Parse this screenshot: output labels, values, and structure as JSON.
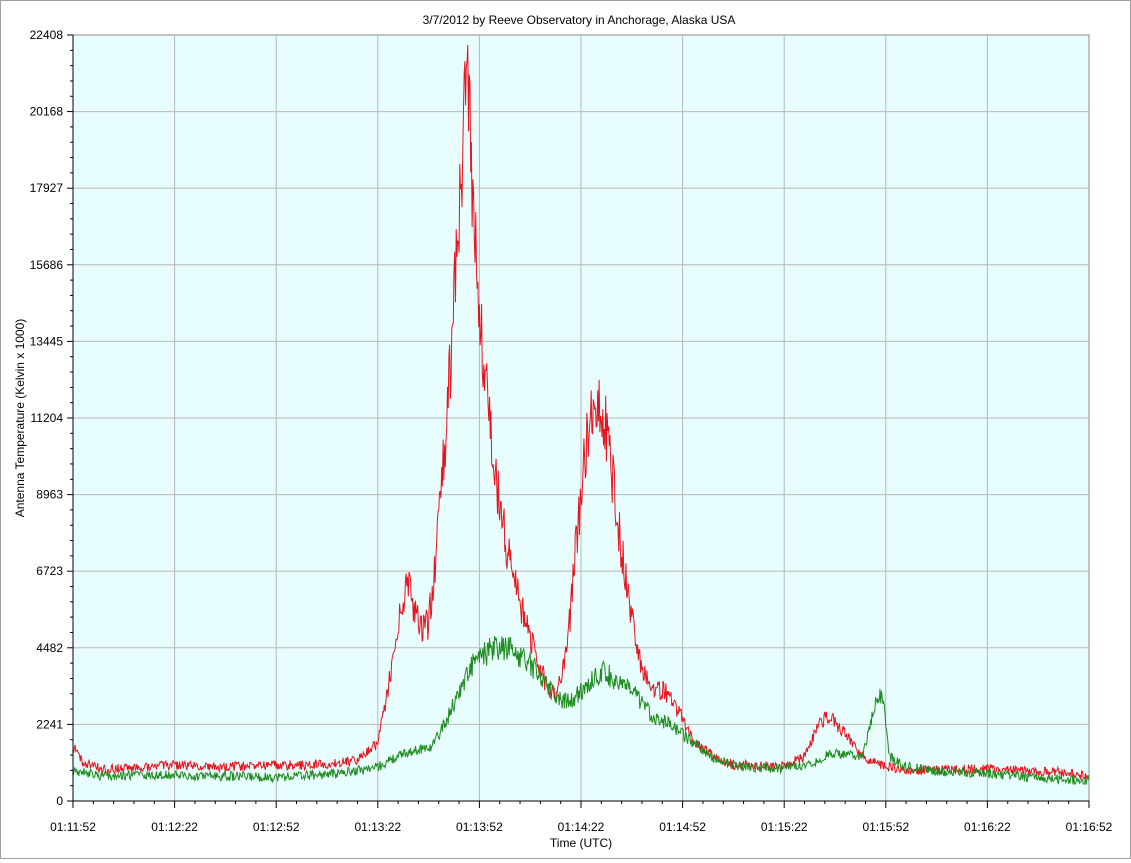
{
  "chart_data": {
    "type": "line",
    "title": "3/7/2012  by  Reeve Observatory  in  Anchorage, Alaska  USA",
    "xlabel": "Time (UTC)",
    "ylabel": "Antenna Temperature (Kelvin x 1000)",
    "ylim": [
      0,
      22408
    ],
    "yticks": [
      0,
      2241,
      4482,
      6723,
      8963,
      11204,
      13445,
      15686,
      17927,
      20168,
      22408
    ],
    "xlim": [
      "01:11:52",
      "01:16:52"
    ],
    "xticks": [
      "01:11:52",
      "01:12:22",
      "01:12:52",
      "01:13:22",
      "01:13:52",
      "01:14:22",
      "01:14:52",
      "01:15:22",
      "01:15:52",
      "01:16:22",
      "01:16:52"
    ],
    "grid": true,
    "background_color": "#e8fdfd",
    "series": [
      {
        "color": "#e8131f",
        "points": [
          [
            "01:11:52",
            1600
          ],
          [
            "01:11:55",
            1150
          ],
          [
            "01:12:00",
            950
          ],
          [
            "01:12:10",
            950
          ],
          [
            "01:12:22",
            1050
          ],
          [
            "01:12:35",
            1000
          ],
          [
            "01:12:52",
            1050
          ],
          [
            "01:13:00",
            1050
          ],
          [
            "01:13:10",
            1100
          ],
          [
            "01:13:16",
            1200
          ],
          [
            "01:13:22",
            1700
          ],
          [
            "01:13:26",
            3800
          ],
          [
            "01:13:29",
            5800
          ],
          [
            "01:13:31",
            6300
          ],
          [
            "01:13:33",
            5500
          ],
          [
            "01:13:35",
            5000
          ],
          [
            "01:13:37",
            5200
          ],
          [
            "01:13:40",
            8000
          ],
          [
            "01:13:43",
            12000
          ],
          [
            "01:13:46",
            17000
          ],
          [
            "01:13:48",
            20500
          ],
          [
            "01:13:49",
            20300
          ],
          [
            "01:13:50",
            17500
          ],
          [
            "01:13:51",
            15800
          ],
          [
            "01:13:53",
            13000
          ],
          [
            "01:13:56",
            10000
          ],
          [
            "01:13:59",
            8000
          ],
          [
            "01:14:02",
            6500
          ],
          [
            "01:14:05",
            5500
          ],
          [
            "01:14:08",
            4500
          ],
          [
            "01:14:12",
            3300
          ],
          [
            "01:14:15",
            3100
          ],
          [
            "01:14:18",
            4500
          ],
          [
            "01:14:21",
            8000
          ],
          [
            "01:14:24",
            10800
          ],
          [
            "01:14:28",
            11800
          ],
          [
            "01:14:30",
            10500
          ],
          [
            "01:14:33",
            8000
          ],
          [
            "01:14:36",
            6000
          ],
          [
            "01:14:39",
            4200
          ],
          [
            "01:14:42",
            3400
          ],
          [
            "01:14:47",
            3200
          ],
          [
            "01:14:51",
            2600
          ],
          [
            "01:14:55",
            1800
          ],
          [
            "01:15:00",
            1400
          ],
          [
            "01:15:07",
            1050
          ],
          [
            "01:15:15",
            1050
          ],
          [
            "01:15:22",
            1050
          ],
          [
            "01:15:28",
            1300
          ],
          [
            "01:15:32",
            2200
          ],
          [
            "01:15:35",
            2500
          ],
          [
            "01:15:38",
            2200
          ],
          [
            "01:15:42",
            1700
          ],
          [
            "01:15:46",
            1200
          ],
          [
            "01:15:52",
            1000
          ],
          [
            "01:16:00",
            900
          ],
          [
            "01:16:10",
            900
          ],
          [
            "01:16:22",
            950
          ],
          [
            "01:16:35",
            850
          ],
          [
            "01:16:45",
            850
          ],
          [
            "01:16:52",
            700
          ]
        ]
      },
      {
        "color": "#1e8c1e",
        "points": [
          [
            "01:11:52",
            900
          ],
          [
            "01:12:00",
            750
          ],
          [
            "01:12:22",
            750
          ],
          [
            "01:12:52",
            700
          ],
          [
            "01:13:10",
            800
          ],
          [
            "01:13:22",
            1000
          ],
          [
            "01:13:30",
            1400
          ],
          [
            "01:13:38",
            1600
          ],
          [
            "01:13:42",
            2300
          ],
          [
            "01:13:46",
            3200
          ],
          [
            "01:13:50",
            4000
          ],
          [
            "01:13:55",
            4400
          ],
          [
            "01:14:00",
            4500
          ],
          [
            "01:14:05",
            4200
          ],
          [
            "01:14:10",
            3700
          ],
          [
            "01:14:15",
            3000
          ],
          [
            "01:14:19",
            2900
          ],
          [
            "01:14:23",
            3300
          ],
          [
            "01:14:28",
            3800
          ],
          [
            "01:14:33",
            3500
          ],
          [
            "01:14:38",
            3100
          ],
          [
            "01:14:43",
            2500
          ],
          [
            "01:14:49",
            2200
          ],
          [
            "01:14:55",
            1700
          ],
          [
            "01:15:02",
            1200
          ],
          [
            "01:15:10",
            1000
          ],
          [
            "01:15:20",
            950
          ],
          [
            "01:15:30",
            1100
          ],
          [
            "01:15:36",
            1400
          ],
          [
            "01:15:45",
            1300
          ],
          [
            "01:15:49",
            2800
          ],
          [
            "01:15:51",
            3200
          ],
          [
            "01:15:53",
            1300
          ],
          [
            "01:15:58",
            1000
          ],
          [
            "01:16:10",
            850
          ],
          [
            "01:16:22",
            800
          ],
          [
            "01:16:40",
            650
          ],
          [
            "01:16:52",
            600
          ]
        ]
      }
    ]
  }
}
